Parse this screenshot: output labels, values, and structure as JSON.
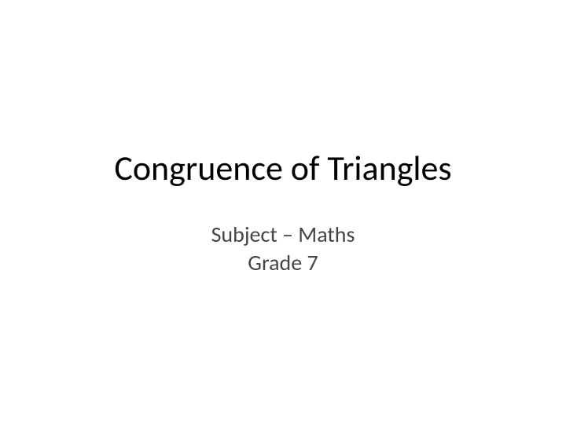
{
  "slide": {
    "title": "Congruence of Triangles",
    "subtitle_line1": "Subject – Maths",
    "subtitle_line2": "Grade 7",
    "background_color": "#ffffff",
    "title_color": "#000000",
    "subtitle_color": "#444444",
    "title_fontsize": 44,
    "subtitle_fontsize": 28,
    "font_family": "Calibri"
  }
}
